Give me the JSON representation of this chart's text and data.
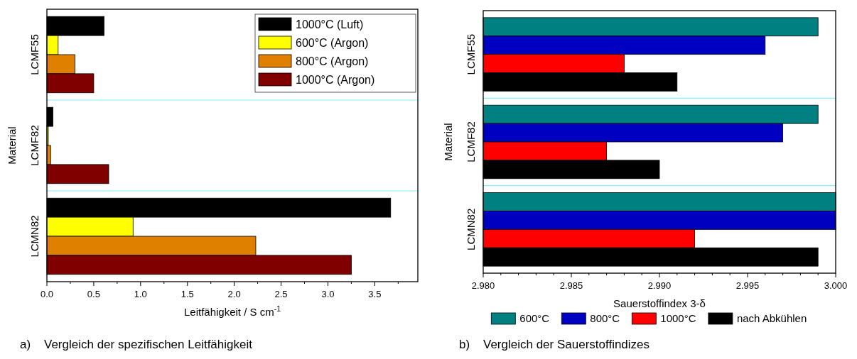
{
  "chart_data": [
    {
      "type": "bar",
      "orientation": "horizontal",
      "categories": [
        "LCMF55",
        "LCMF82",
        "LCMN82"
      ],
      "xlabel": "Leitfähigkeit / S cm$^{-1}$",
      "ylabel": "Material",
      "series": [
        {
          "name": "1000°C (Luft)",
          "color": "#000000",
          "values": [
            0.61,
            0.065,
            3.67
          ]
        },
        {
          "name": "600°C (Argon)",
          "color": "#ffff00",
          "values": [
            0.12,
            0.015,
            0.92
          ]
        },
        {
          "name": "800°C (Argon)",
          "color": "#e08000",
          "values": [
            0.3,
            0.04,
            2.23
          ]
        },
        {
          "name": "1000°C (Argon)",
          "color": "#800000",
          "values": [
            0.5,
            0.66,
            3.25
          ]
        }
      ],
      "xlim": [
        0,
        3.96
      ],
      "xticks": [
        {
          "value": 0,
          "label": "0.0"
        },
        {
          "value": 0.25,
          "label": null
        },
        {
          "value": 0.5,
          "label": "0.5"
        },
        {
          "value": 0.75,
          "label": null
        },
        {
          "value": 1,
          "label": "1.0"
        },
        {
          "value": 1.25,
          "label": null
        },
        {
          "value": 1.5,
          "label": "1.5"
        },
        {
          "value": 1.75,
          "label": null
        },
        {
          "value": 2,
          "label": "2.0"
        },
        {
          "value": 2.25,
          "label": null
        },
        {
          "value": 2.5,
          "label": "2.5"
        },
        {
          "value": 2.75,
          "label": null
        },
        {
          "value": 3,
          "label": "3.0"
        },
        {
          "value": 3.25,
          "label": null
        },
        {
          "value": 3.5,
          "label": "3.5"
        },
        {
          "value": 3.75,
          "label": null
        }
      ],
      "grid": "y",
      "legend": "top right",
      "annotations": [
        "a)    Vergleich der spezifischen Leitfähigkeit"
      ]
    },
    {
      "type": "bar",
      "orientation": "horizontal",
      "categories": [
        "LCMF55",
        "LCMF82",
        "LCMN82"
      ],
      "xlabel": "Sauerstoffindex 3-δ",
      "ylabel": "Material",
      "series": [
        {
          "name": "600°C",
          "color": "#008080",
          "values": [
            2.999,
            2.999,
            3.0
          ]
        },
        {
          "name": "800°C",
          "color": "#0000c0",
          "values": [
            2.996,
            2.997,
            3.0
          ]
        },
        {
          "name": "1000°C",
          "color": "#ff0000",
          "values": [
            2.988,
            2.987,
            2.992
          ]
        },
        {
          "name": "nach Abkühlen",
          "color": "#000000",
          "values": [
            2.991,
            2.99,
            2.999
          ]
        }
      ],
      "xlim": [
        2.98,
        3.0
      ],
      "xticks": [
        {
          "value": 2.98,
          "label": "2.980"
        },
        {
          "value": 2.981,
          "label": null
        },
        {
          "value": 2.982,
          "label": null
        },
        {
          "value": 2.983,
          "label": null
        },
        {
          "value": 2.984,
          "label": null
        },
        {
          "value": 2.985,
          "label": "2.985"
        },
        {
          "value": 2.986,
          "label": null
        },
        {
          "value": 2.987,
          "label": null
        },
        {
          "value": 2.988,
          "label": null
        },
        {
          "value": 2.989,
          "label": null
        },
        {
          "value": 2.99,
          "label": "2.990"
        },
        {
          "value": 2.991,
          "label": null
        },
        {
          "value": 2.992,
          "label": null
        },
        {
          "value": 2.993,
          "label": null
        },
        {
          "value": 2.994,
          "label": null
        },
        {
          "value": 2.995,
          "label": "2.995"
        },
        {
          "value": 2.996,
          "label": null
        },
        {
          "value": 2.997,
          "label": null
        },
        {
          "value": 2.998,
          "label": null
        },
        {
          "value": 2.999,
          "label": null
        },
        {
          "value": 3.0,
          "label": "3.000"
        }
      ],
      "grid": "y",
      "legend": "bottom",
      "annotations": [
        "b)    Vergleich der Sauerstoffindizes"
      ]
    }
  ]
}
